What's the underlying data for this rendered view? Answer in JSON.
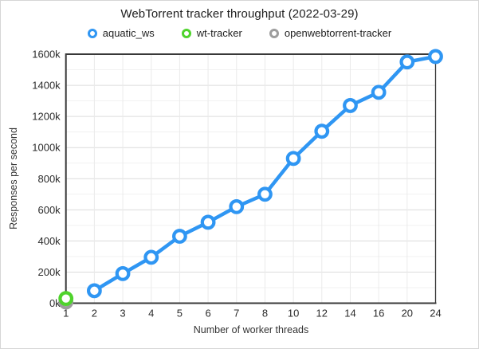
{
  "chart_data": {
    "type": "line",
    "title": "WebTorrent tracker throughput (2022-03-29)",
    "xlabel": "Number of worker threads",
    "ylabel": "Responses per second",
    "categories": [
      "1",
      "2",
      "3",
      "4",
      "5",
      "6",
      "7",
      "8",
      "10",
      "12",
      "14",
      "16",
      "20",
      "24"
    ],
    "ylim": [
      0,
      1600000
    ],
    "ytick_step": 200000,
    "yminor_step": 100000,
    "ytick_labels": [
      "0k",
      "200k",
      "400k",
      "600k",
      "800k",
      "1000k",
      "1200k",
      "1400k",
      "1600k"
    ],
    "grid": "on",
    "legend_position": "top",
    "marker_style": "ring",
    "series": [
      {
        "name": "aquatic_ws",
        "color": "#2F96F3",
        "values": [
          null,
          80000,
          190000,
          295000,
          430000,
          520000,
          620000,
          700000,
          930000,
          1105000,
          1270000,
          1355000,
          1550000,
          1585000
        ]
      },
      {
        "name": "wt-tracker",
        "color": "#4FD32C",
        "values": [
          30000,
          null,
          null,
          null,
          null,
          null,
          null,
          null,
          null,
          null,
          null,
          null,
          null,
          null
        ]
      },
      {
        "name": "openwebtorrent-tracker",
        "color": "#9D9D9D",
        "values": [
          8000,
          null,
          null,
          null,
          null,
          null,
          null,
          null,
          null,
          null,
          null,
          null,
          null,
          null
        ]
      }
    ]
  }
}
